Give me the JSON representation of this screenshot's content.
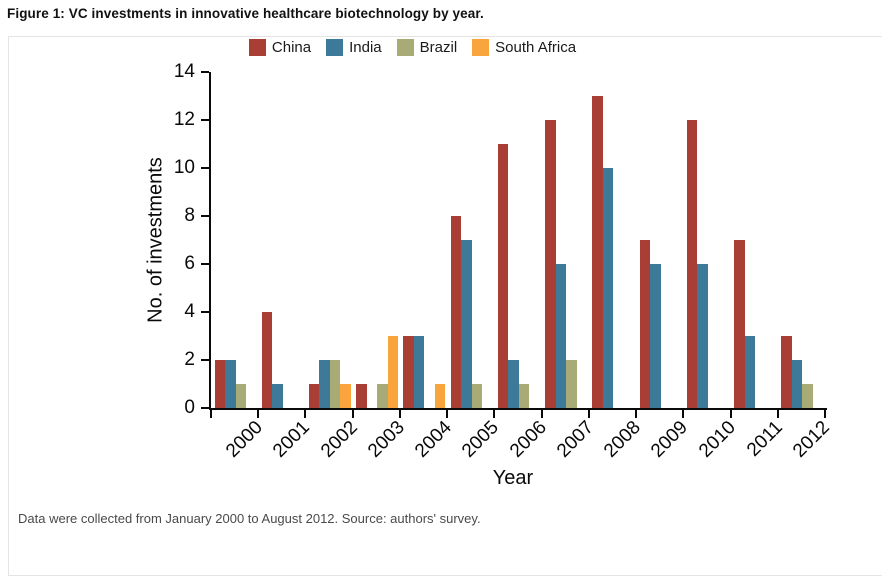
{
  "title": "Figure 1: VC investments in innovative healthcare biotechnology by year.",
  "caption": "Data were collected from January 2000 to August 2012. Source: authors' survey.",
  "colors": {
    "china": "#a83e34",
    "india": "#3d7a99",
    "brazil": "#a9ab77",
    "south_africa": "#f9a43c",
    "axis": "#0a0a0a",
    "box_border": "#e4e4e4",
    "caption_text": "#4a4a4a"
  },
  "chart_data": {
    "type": "bar",
    "title": "",
    "xlabel": "Year",
    "ylabel": "No. of investments",
    "ylim": [
      0,
      14
    ],
    "y_ticks": [
      0,
      2,
      4,
      6,
      8,
      10,
      12,
      14
    ],
    "grid": false,
    "legend_position": "top-center",
    "categories": [
      "2000",
      "2001",
      "2002",
      "2003",
      "2004",
      "2005",
      "2006",
      "2007",
      "2008",
      "2009",
      "2010",
      "2011",
      "2012"
    ],
    "series": [
      {
        "name": "China",
        "color": "#a83e34",
        "values": [
          2,
          4,
          1,
          1,
          3,
          8,
          11,
          12,
          13,
          7,
          12,
          7,
          3
        ]
      },
      {
        "name": "India",
        "color": "#3d7a99",
        "values": [
          2,
          1,
          2,
          0,
          3,
          7,
          2,
          6,
          10,
          6,
          6,
          3,
          2
        ]
      },
      {
        "name": "Brazil",
        "color": "#a9ab77",
        "values": [
          1,
          0,
          2,
          1,
          0,
          1,
          1,
          2,
          0,
          0,
          0,
          0,
          1
        ]
      },
      {
        "name": "South Africa",
        "color": "#f9a43c",
        "values": [
          0,
          0,
          1,
          3,
          1,
          0,
          0,
          0,
          0,
          0,
          0,
          0,
          0
        ]
      }
    ]
  }
}
